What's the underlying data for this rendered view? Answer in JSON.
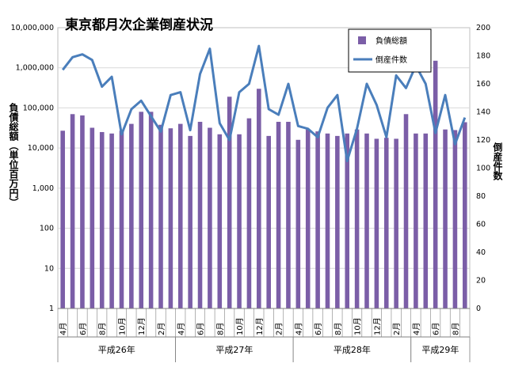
{
  "chart_data": {
    "type": "bar+line",
    "title": "東京都月次企業倒産状況",
    "y_left": {
      "label": "負債総額（単位百万円）",
      "scale": "log",
      "ticks": [
        "10,000,000",
        "1,000,000",
        "100,000",
        "10,000",
        "1,000",
        "100",
        "10",
        "1"
      ]
    },
    "y_right": {
      "label": "倒産件数",
      "ticks": [
        "200",
        "180",
        "160",
        "140",
        "120",
        "100",
        "80",
        "60",
        "40",
        "20",
        "0"
      ],
      "ylim": [
        0,
        200
      ]
    },
    "x_labels": [
      "4月",
      "",
      "6月",
      "",
      "8月",
      "",
      "10月",
      "",
      "12月",
      "",
      "2月",
      "",
      "4月",
      "",
      "6月",
      "",
      "8月",
      "",
      "10月",
      "",
      "12月",
      "",
      "2月",
      "",
      "4月",
      "",
      "6月",
      "",
      "8月",
      "",
      "10月",
      "",
      "12月",
      "",
      "2月",
      "",
      "4月",
      "",
      "6月",
      "",
      "8月",
      ""
    ],
    "groups": [
      {
        "label": "平成26年",
        "start": 0,
        "end": 11
      },
      {
        "label": "平成27年",
        "start": 12,
        "end": 23
      },
      {
        "label": "平成28年",
        "start": 24,
        "end": 35
      },
      {
        "label": "平成29年",
        "start": 36,
        "end": 41
      }
    ],
    "series": [
      {
        "name": "負債総額",
        "kind": "bar",
        "axis": "left",
        "color": "#7b5ea7",
        "values": [
          27000,
          70000,
          65000,
          32000,
          25000,
          23000,
          27000,
          40000,
          80000,
          80000,
          38000,
          31000,
          40000,
          20000,
          45000,
          32000,
          22000,
          190000,
          22000,
          55000,
          300000,
          20000,
          45000,
          45000,
          16000,
          29000,
          26000,
          23000,
          20000,
          23000,
          29000,
          23000,
          17000,
          18000,
          17000,
          70000,
          23000,
          23000,
          1500000,
          29000,
          28000,
          44000
        ]
      },
      {
        "name": "倒産件数",
        "kind": "line",
        "axis": "right",
        "color": "#4a7ebb",
        "values": [
          170,
          179,
          181,
          177,
          158,
          165,
          124,
          142,
          148,
          137,
          126,
          152,
          154,
          127,
          167,
          185,
          132,
          120,
          154,
          160,
          187,
          142,
          138,
          160,
          130,
          128,
          122,
          143,
          152,
          105,
          128,
          160,
          145,
          122,
          166,
          157,
          173,
          160,
          125,
          152,
          117,
          136
        ]
      }
    ]
  }
}
